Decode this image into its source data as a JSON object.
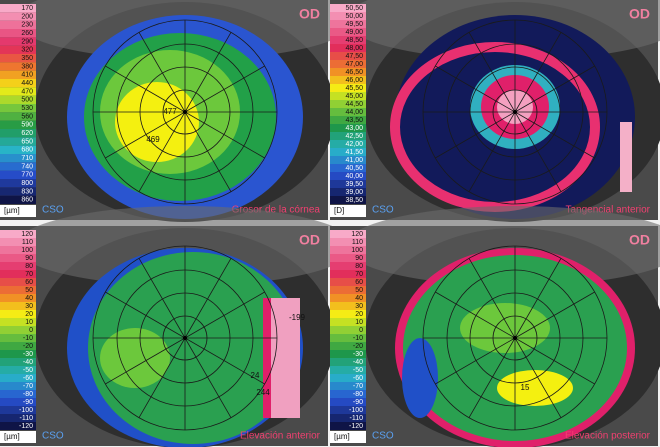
{
  "logo": "CSO",
  "panels": [
    {
      "badge": "OD",
      "title": "Grosor de la córnea",
      "unit": "[µm]",
      "scale": [
        "170",
        "200",
        "230",
        "260",
        "290",
        "320",
        "350",
        "380",
        "410",
        "440",
        "470",
        "500",
        "530",
        "560",
        "590",
        "620",
        "650",
        "680",
        "710",
        "740",
        "770",
        "800",
        "830",
        "860"
      ],
      "labels": [
        "477",
        "469"
      ]
    },
    {
      "badge": "OD",
      "title": "Tangencial anterior",
      "unit": "[D]",
      "scale": [
        "50,50",
        "50,00",
        "49,50",
        "49,00",
        "48,50",
        "48,00",
        "47,50",
        "47,00",
        "46,50",
        "46,00",
        "45,50",
        "45,00",
        "44,50",
        "44,00",
        "43,50",
        "43,00",
        "42,50",
        "42,00",
        "41,50",
        "41,00",
        "40,50",
        "40,00",
        "39,50",
        "39,00",
        "38,50"
      ]
    },
    {
      "badge": "OD",
      "title": "Elevación anterior",
      "unit": "[µm]",
      "scale": [
        "120",
        "110",
        "100",
        "90",
        "80",
        "70",
        "60",
        "50",
        "40",
        "30",
        "20",
        "10",
        "0",
        "-10",
        "-20",
        "-30",
        "-40",
        "-50",
        "-60",
        "-70",
        "-80",
        "-90",
        "-100",
        "-110",
        "-120"
      ],
      "labels": [
        "-199",
        "244",
        "24"
      ]
    },
    {
      "badge": "OD",
      "title": "Elevación posterior",
      "unit": "[µm]",
      "scale": [
        "120",
        "110",
        "100",
        "90",
        "80",
        "70",
        "60",
        "50",
        "40",
        "30",
        "20",
        "10",
        "0",
        "-10",
        "-20",
        "-30",
        "-40",
        "-50",
        "-60",
        "-70",
        "-80",
        "-90",
        "-100",
        "-110",
        "-120"
      ],
      "labels": [
        "15"
      ]
    }
  ]
}
